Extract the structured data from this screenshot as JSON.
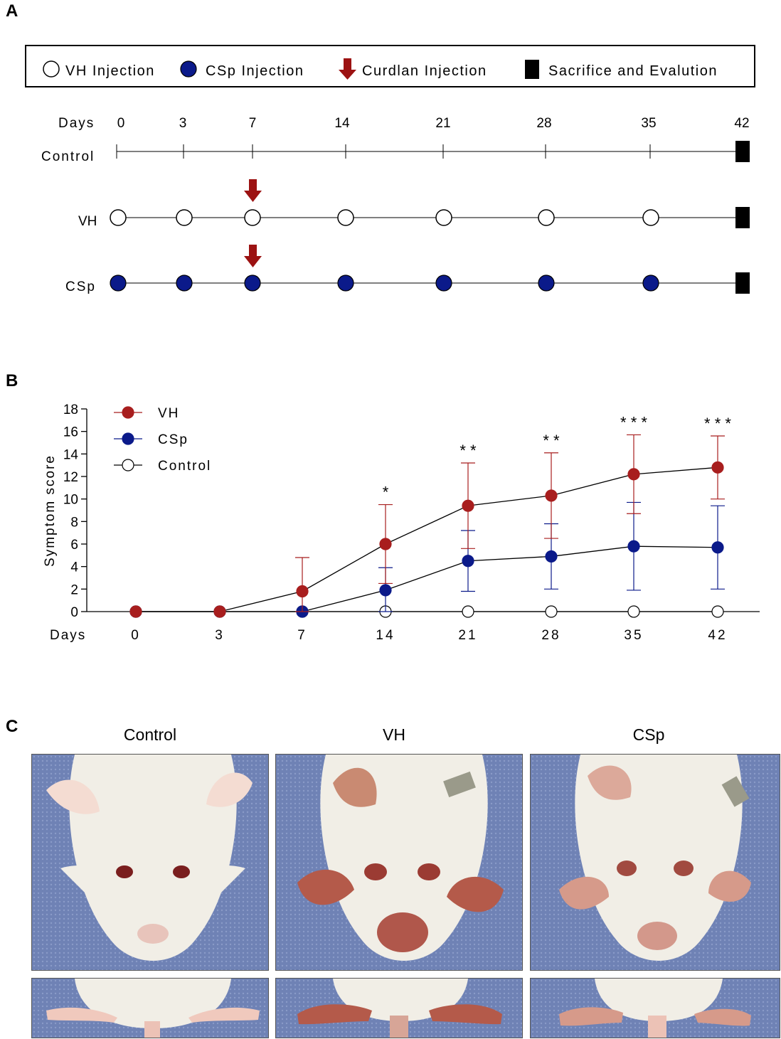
{
  "panels": {
    "a": "A",
    "b": "B",
    "c": "C"
  },
  "legend": {
    "vh": "VH Injection",
    "csp": "CSp Injection",
    "curdlan": "Curdlan Injection",
    "sacrifice": "Sacrifice and Evalution"
  },
  "timeline": {
    "days_label": "Days",
    "days": [
      "0",
      "3",
      "7",
      "14",
      "21",
      "28",
      "35",
      "42"
    ],
    "rows": [
      {
        "label": "Control",
        "marker": "none"
      },
      {
        "label": "VH",
        "marker": "open"
      },
      {
        "label": "CSp",
        "marker": "filled"
      }
    ],
    "curdlan_day": "7"
  },
  "colors": {
    "vh_red": "#a81e1e",
    "csp_blue": "#0b1a8a",
    "arrow_red": "#9c1212",
    "black": "#000000"
  },
  "chart_data": {
    "type": "line",
    "ylabel": "Symptom score",
    "xlabel": "Days",
    "categories": [
      "0",
      "3",
      "7",
      "14",
      "21",
      "28",
      "35",
      "42"
    ],
    "ylim": [
      0,
      18
    ],
    "yticks": [
      "0",
      "2",
      "4",
      "6",
      "8",
      "10",
      "12",
      "14",
      "16",
      "18"
    ],
    "series": [
      {
        "name": "VH",
        "color": "#a81e1e",
        "filled": true,
        "values": [
          0,
          0,
          1.8,
          6.0,
          9.4,
          10.3,
          12.2,
          12.8
        ],
        "error": [
          0,
          0,
          3.0,
          3.5,
          3.8,
          3.8,
          3.5,
          2.8
        ]
      },
      {
        "name": "CSp",
        "color": "#0b1a8a",
        "filled": true,
        "values": [
          0,
          0,
          0,
          1.9,
          4.5,
          4.9,
          5.8,
          5.7
        ],
        "error": [
          0,
          0,
          0,
          2.0,
          2.7,
          2.9,
          3.9,
          3.7
        ]
      },
      {
        "name": "Control",
        "color": "#000000",
        "filled": false,
        "values": [
          0,
          0,
          0,
          0,
          0,
          0,
          0,
          0
        ],
        "error": [
          0,
          0,
          0,
          0,
          0,
          0,
          0,
          0
        ]
      }
    ],
    "significance": [
      "",
      "",
      "",
      "*",
      "* *",
      "* *",
      "* * *",
      "* * *"
    ]
  },
  "photos": {
    "columns": [
      "Control",
      "VH",
      "CSp"
    ]
  }
}
